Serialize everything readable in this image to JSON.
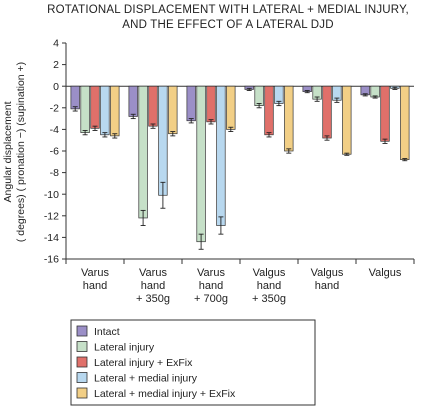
{
  "chart_data": {
    "type": "bar",
    "title_lines": [
      "ROTATIONAL DISPLACEMENT WITH LATERAL + MEDIAL INJURY,",
      "AND THE EFFECT OF A LATERAL DJD"
    ],
    "ylabel_lines": [
      "Angular displacement",
      "( degrees) ( pronation −) (supination +)"
    ],
    "xlabel": "",
    "ylim": [
      -16,
      4
    ],
    "yticks": [
      4,
      2,
      0,
      -2,
      -4,
      -6,
      -8,
      -10,
      -12,
      -14,
      -16
    ],
    "grid": false,
    "legend_position": "bottom-left",
    "categories": [
      [
        "Varus",
        "hand"
      ],
      [
        "Varus",
        "hand",
        "+ 350g"
      ],
      [
        "Varus",
        "hand",
        "+ 700g"
      ],
      [
        "Valgus",
        "hand",
        "+ 350g"
      ],
      [
        "Valgus",
        "hand"
      ],
      [
        "Valgus"
      ]
    ],
    "series": [
      {
        "name": "Intact",
        "color": "#9b8fc7",
        "values": [
          -2.1,
          -2.8,
          -3.2,
          -0.3,
          -0.5,
          -0.8
        ],
        "errors": [
          0.2,
          0.2,
          0.2,
          0.1,
          0.1,
          0.1
        ]
      },
      {
        "name": "Lateral injury",
        "color": "#c6e0c8",
        "values": [
          -4.3,
          -12.2,
          -14.4,
          -1.8,
          -1.2,
          -1.0
        ],
        "errors": [
          0.2,
          0.7,
          0.7,
          0.2,
          0.2,
          0.1
        ]
      },
      {
        "name": "Lateral injury + ExFix",
        "color": "#e0706a",
        "values": [
          -3.9,
          -3.7,
          -3.3,
          -4.5,
          -4.8,
          -5.1
        ],
        "errors": [
          0.2,
          0.2,
          0.2,
          0.2,
          0.2,
          0.2
        ]
      },
      {
        "name": "Lateral + medial injury",
        "color": "#b8d8ef",
        "values": [
          -4.5,
          -10.1,
          -12.9,
          -1.6,
          -1.3,
          -0.2
        ],
        "errors": [
          0.2,
          1.2,
          0.8,
          0.2,
          0.2,
          0.1
        ]
      },
      {
        "name": "Lateral + medial injury + ExFix",
        "color": "#f2cf86",
        "values": [
          -4.6,
          -4.4,
          -4.0,
          -6.0,
          -6.3,
          -6.8
        ],
        "errors": [
          0.2,
          0.2,
          0.2,
          0.2,
          0.1,
          0.1
        ]
      }
    ]
  }
}
